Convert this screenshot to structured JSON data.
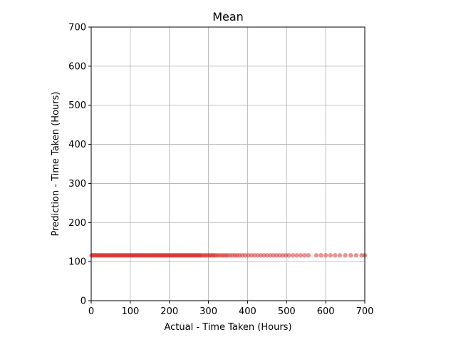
{
  "chart_data": {
    "type": "scatter",
    "title": "Mean",
    "xlabel": "Actual - Time Taken (Hours)",
    "ylabel": "Prediction - Time Taken (Hours)",
    "xlim": [
      0,
      700
    ],
    "ylim": [
      0,
      700
    ],
    "xticks": [
      0,
      100,
      200,
      300,
      400,
      500,
      600,
      700
    ],
    "yticks": [
      0,
      100,
      200,
      300,
      400,
      500,
      600,
      700
    ],
    "grid": true,
    "constant_prediction": 116,
    "x": [
      1,
      4,
      7,
      10,
      13,
      16,
      19,
      22,
      25,
      28,
      31,
      34,
      37,
      40,
      43,
      46,
      49,
      52,
      55,
      58,
      61,
      64,
      67,
      70,
      73,
      76,
      79,
      82,
      85,
      88,
      91,
      94,
      97,
      100,
      103,
      106,
      109,
      112,
      115,
      118,
      121,
      124,
      127,
      130,
      133,
      136,
      139,
      142,
      145,
      148,
      151,
      154,
      157,
      160,
      163,
      166,
      169,
      172,
      175,
      178,
      181,
      184,
      187,
      190,
      193,
      196,
      199,
      202,
      205,
      208,
      211,
      214,
      217,
      220,
      223,
      226,
      229,
      232,
      235,
      238,
      241,
      244,
      247,
      250,
      253,
      256,
      259,
      262,
      265,
      268,
      271,
      274,
      277,
      280,
      284,
      288,
      292,
      296,
      300,
      304,
      308,
      312,
      316,
      320,
      325,
      330,
      335,
      340,
      345,
      350,
      356,
      362,
      368,
      374,
      380,
      387,
      394,
      402,
      410,
      418,
      426,
      434,
      442,
      450,
      458,
      466,
      474,
      482,
      490,
      498,
      506,
      516,
      526,
      536,
      546,
      556,
      576,
      588,
      600,
      612,
      624,
      636,
      650,
      664,
      678,
      692,
      700
    ],
    "marker_color": "#d62728",
    "marker_alpha": 0.5
  }
}
